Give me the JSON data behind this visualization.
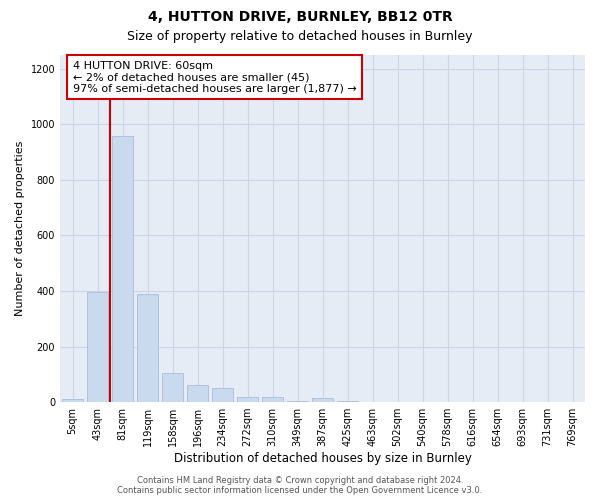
{
  "title1": "4, HUTTON DRIVE, BURNLEY, BB12 0TR",
  "title2": "Size of property relative to detached houses in Burnley",
  "xlabel": "Distribution of detached houses by size in Burnley",
  "ylabel": "Number of detached properties",
  "categories": [
    "5sqm",
    "43sqm",
    "81sqm",
    "119sqm",
    "158sqm",
    "196sqm",
    "234sqm",
    "272sqm",
    "310sqm",
    "349sqm",
    "387sqm",
    "425sqm",
    "463sqm",
    "502sqm",
    "540sqm",
    "578sqm",
    "616sqm",
    "654sqm",
    "693sqm",
    "731sqm",
    "769sqm"
  ],
  "values": [
    10,
    395,
    960,
    390,
    105,
    60,
    50,
    18,
    18,
    5,
    15,
    5,
    0,
    0,
    0,
    0,
    0,
    0,
    0,
    0,
    0
  ],
  "bar_color": "#c9d9ee",
  "bar_edge_color": "#a8bedc",
  "highlight_line_color": "#cc0000",
  "annotation_text": "4 HUTTON DRIVE: 60sqm\n← 2% of detached houses are smaller (45)\n97% of semi-detached houses are larger (1,877) →",
  "annotation_box_color": "#ffffff",
  "annotation_border_color": "#cc0000",
  "ylim": [
    0,
    1250
  ],
  "yticks": [
    0,
    200,
    400,
    600,
    800,
    1000,
    1200
  ],
  "grid_color": "#ccd5e5",
  "background_color": "#e5ecf6",
  "footnote": "Contains HM Land Registry data © Crown copyright and database right 2024.\nContains public sector information licensed under the Open Government Licence v3.0.",
  "title1_fontsize": 10,
  "title2_fontsize": 9,
  "xlabel_fontsize": 8.5,
  "ylabel_fontsize": 8,
  "tick_fontsize": 7,
  "annot_fontsize": 8,
  "footnote_fontsize": 6
}
